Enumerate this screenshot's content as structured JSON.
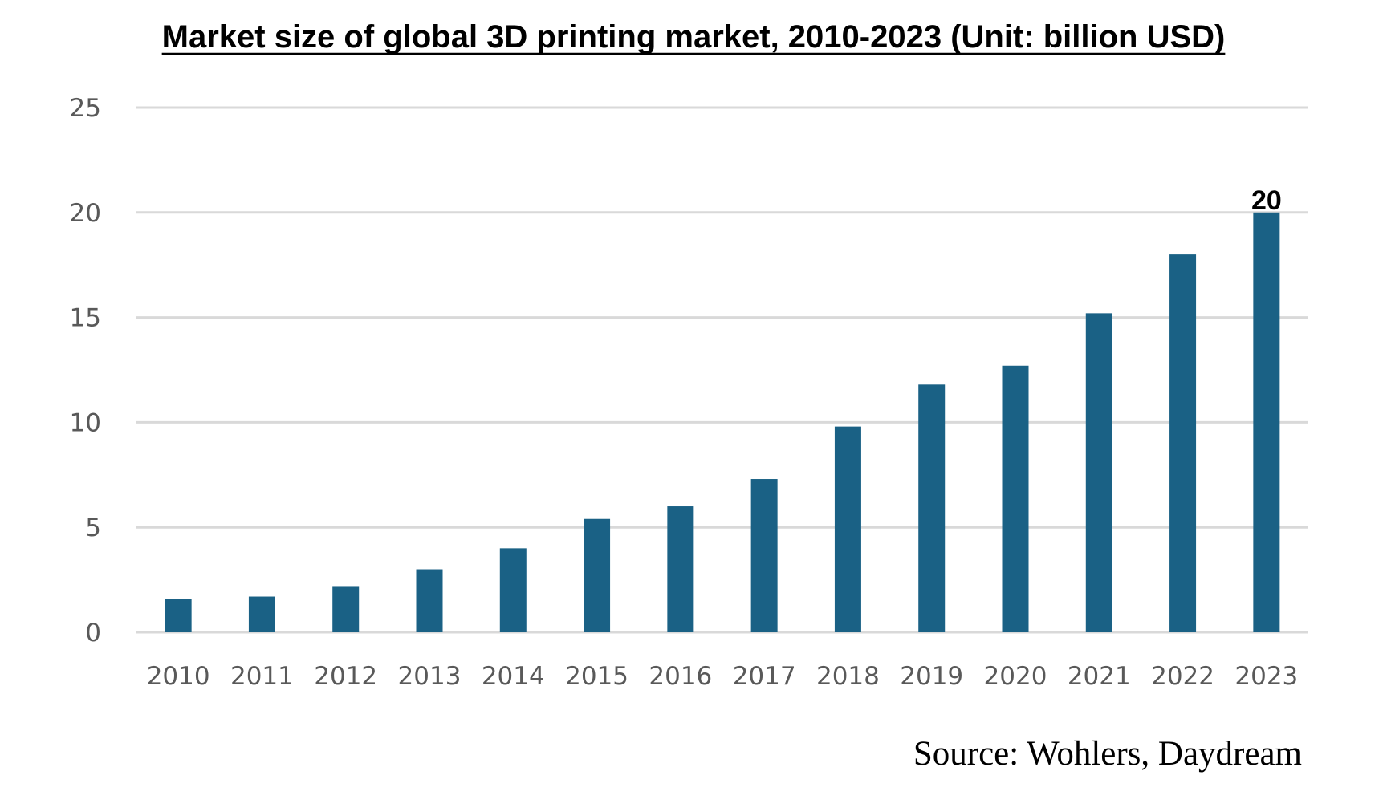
{
  "chart_data": {
    "type": "bar",
    "title": "Market size of global 3D printing market, 2010-2023 (Unit: billion USD)",
    "xlabel": "",
    "ylabel": "",
    "categories": [
      "2010",
      "2011",
      "2012",
      "2013",
      "2014",
      "2015",
      "2016",
      "2017",
      "2018",
      "2019",
      "2020",
      "2021",
      "2022",
      "2023"
    ],
    "values": [
      1.6,
      1.7,
      2.2,
      3.0,
      4.0,
      5.4,
      6.0,
      7.3,
      9.8,
      11.8,
      12.7,
      15.2,
      18.0,
      20.0
    ],
    "ylim": [
      0,
      25
    ],
    "yticks": [
      "0",
      "5",
      "10",
      "15",
      "20",
      "25"
    ],
    "data_labels": [
      {
        "category": "2023",
        "text": "20"
      }
    ],
    "grid": "horizontal",
    "legend": "none",
    "bar_color": "#1a6185",
    "source": "Source: Wohlers, Daydream"
  }
}
